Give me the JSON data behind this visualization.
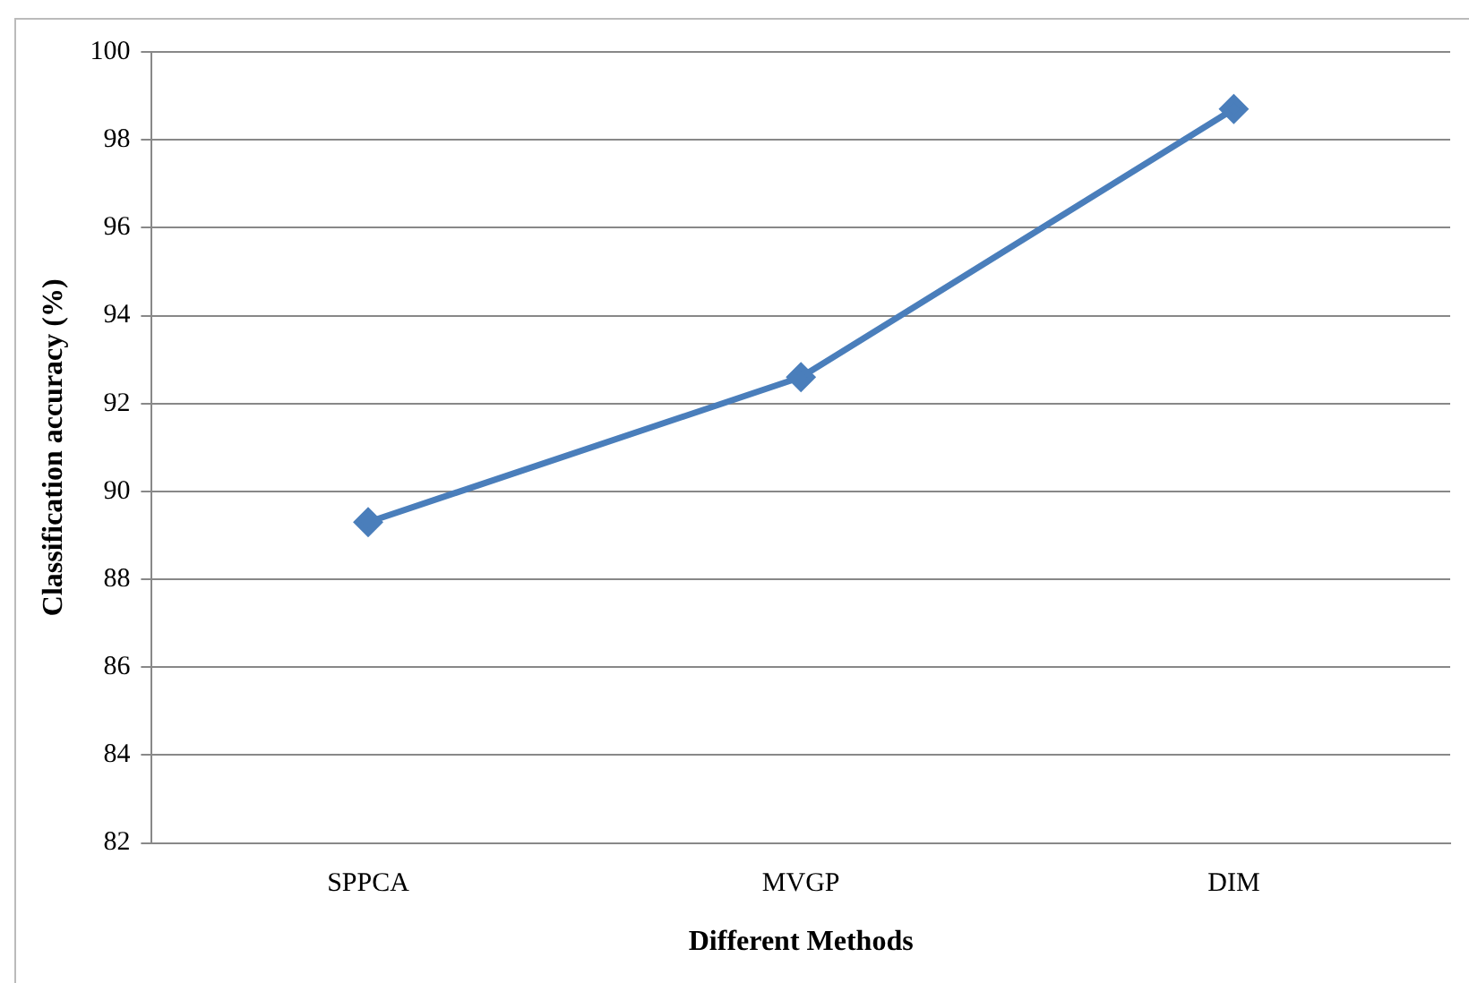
{
  "chart_data": {
    "type": "line",
    "xlabel": "Different Methods",
    "ylabel": "Classification accuracy (%)",
    "categories": [
      "SPPCA",
      "MVGP",
      "DIM"
    ],
    "series": [
      {
        "color": "#4a7ebb",
        "values": [
          89.3,
          92.6,
          98.7
        ]
      }
    ],
    "ylim": [
      82,
      100
    ],
    "yticks": [
      82,
      84,
      86,
      88,
      90,
      92,
      94,
      96,
      98,
      100
    ],
    "grid": "y",
    "legend": false,
    "marker": "diamond",
    "line_style": "solid"
  }
}
